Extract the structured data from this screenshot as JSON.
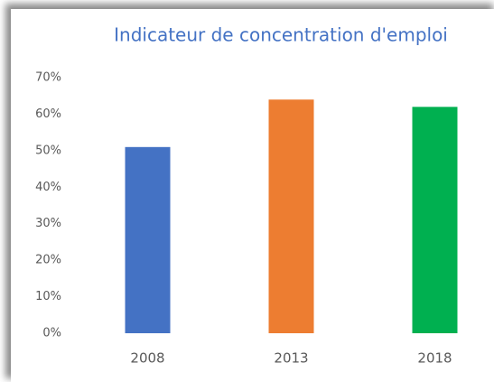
{
  "chart_data": {
    "type": "bar",
    "title": "Indicateur de concentration d'emploi",
    "categories": [
      "2008",
      "2013",
      "2018"
    ],
    "values": [
      51,
      64,
      62
    ],
    "colors": [
      "#4472c4",
      "#ed7d31",
      "#00b050"
    ],
    "ylim": [
      0,
      70
    ],
    "yticks": [
      {
        "value": 0,
        "label": "0%"
      },
      {
        "value": 10,
        "label": "10%"
      },
      {
        "value": 20,
        "label": "20%"
      },
      {
        "value": 30,
        "label": "30%"
      },
      {
        "value": 40,
        "label": "40%"
      },
      {
        "value": 50,
        "label": "50%"
      },
      {
        "value": 60,
        "label": "60%"
      },
      {
        "value": 70,
        "label": "70%"
      }
    ],
    "grid": false
  }
}
